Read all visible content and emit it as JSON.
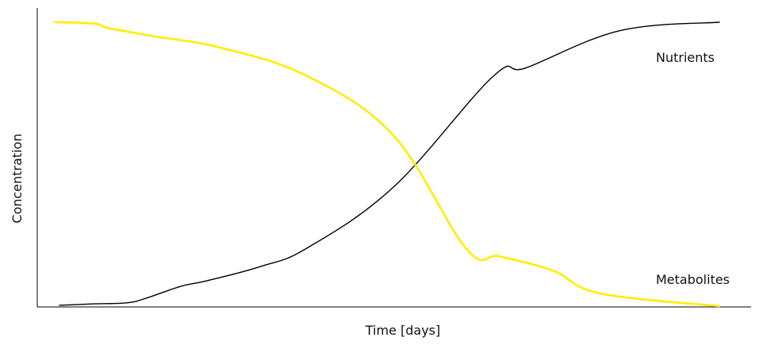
{
  "chart_data": {
    "type": "line",
    "title": "",
    "xlabel": "Time [days]",
    "ylabel": "Concentration",
    "x_ticks_shown": false,
    "y_ticks_shown": false,
    "grid": false,
    "xlim": [
      0,
      10
    ],
    "ylim": [
      0,
      1
    ],
    "series": [
      {
        "name": "Nutrients",
        "color": "#000000",
        "x": [
          0.07,
          0.6,
          1.1,
          1.4,
          1.9,
          2.3,
          3.1,
          3.8,
          5.1,
          6.6,
          7.1,
          8.5,
          10.0
        ],
        "y": [
          0.003,
          0.008,
          0.012,
          0.03,
          0.07,
          0.09,
          0.14,
          0.205,
          0.42,
          0.81,
          0.84,
          0.97,
          1.0
        ]
      },
      {
        "name": "Metabolites",
        "color": "#ffed00",
        "x": [
          0.0,
          0.6,
          0.8,
          1.5,
          2.5,
          3.8,
          5.1,
          6.2,
          6.7,
          7.5,
          8.2,
          10.0
        ],
        "y": [
          1.0,
          0.995,
          0.98,
          0.95,
          0.91,
          0.81,
          0.6,
          0.2,
          0.175,
          0.125,
          0.045,
          0.0
        ]
      }
    ],
    "annotations": [
      {
        "text": "Nutrients",
        "series": "Nutrients"
      },
      {
        "text": "Metabolites",
        "series": "Metabolites"
      }
    ]
  }
}
